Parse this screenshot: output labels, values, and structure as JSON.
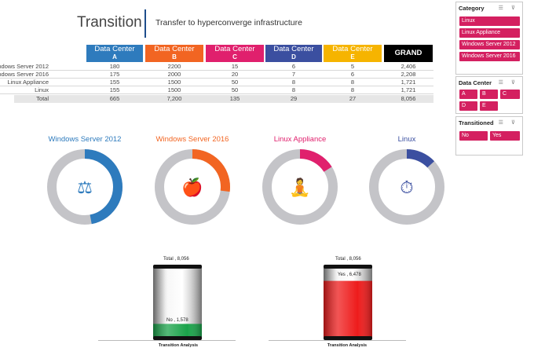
{
  "header": {
    "title": "Transition",
    "subtitle": "Transfer  to hyperconverge infrastructure"
  },
  "table": {
    "columns": [
      {
        "label": "Data Center",
        "sub": "A",
        "color": "#2e7bbd"
      },
      {
        "label": "Data Center",
        "sub": "B",
        "color": "#f26522"
      },
      {
        "label": "Data Center",
        "sub": "C",
        "color": "#e0206d"
      },
      {
        "label": "Data Center",
        "sub": "D",
        "color": "#3b4fa0"
      },
      {
        "label": "Data Center",
        "sub": "E",
        "color": "#f6b400"
      }
    ],
    "grand_total_label": "GRAND TOTAL",
    "rows": [
      {
        "label": "Windows Server 2012",
        "values": [
          "180",
          "2200",
          "15",
          "6",
          "5"
        ],
        "total": "2,406"
      },
      {
        "label": "Windows Server 2016",
        "values": [
          "175",
          "2000",
          "20",
          "7",
          "6"
        ],
        "total": "2,208"
      },
      {
        "label": "Linux Appliance",
        "values": [
          "155",
          "1500",
          "50",
          "8",
          "8"
        ],
        "total": "1,721"
      },
      {
        "label": "Linux",
        "values": [
          "155",
          "1500",
          "50",
          "8",
          "8"
        ],
        "total": "1,721"
      },
      {
        "label": "Total",
        "values": [
          "665",
          "7,200",
          "135",
          "29",
          "27"
        ],
        "total": "8,056"
      }
    ]
  },
  "slicers": {
    "category": {
      "title": "Category",
      "items": [
        "Linux",
        "Linux Appliance",
        "Windows Server 2012",
        "Windows Server 2016"
      ]
    },
    "data_center": {
      "title": "Data Center",
      "items": [
        "A",
        "B",
        "C",
        "D",
        "E"
      ]
    },
    "transitioned": {
      "title": "Transitioned",
      "items": [
        "No",
        "Yes"
      ]
    },
    "icons": "☰ ⊽"
  },
  "donuts": [
    {
      "label": "Windows Server 2012",
      "color": "#2e7bbd",
      "fraction": 0.47,
      "icon": "scale-icon",
      "glyph": "⚖"
    },
    {
      "label": "Windows Server 2016",
      "color": "#f26522",
      "fraction": 0.27,
      "icon": "apple-icon",
      "glyph": "🍎"
    },
    {
      "label": "Linux Appliance",
      "color": "#e0206d",
      "fraction": 0.16,
      "icon": "meditation-icon",
      "glyph": "🧘"
    },
    {
      "label": "Linux",
      "color": "#3b4fa0",
      "fraction": 0.13,
      "icon": "stopwatch-icon",
      "glyph": "⏱"
    }
  ],
  "transition_charts": [
    {
      "total_label": "Total ,  8,056",
      "value_label": "No ,  1,578",
      "value": 1578,
      "total": 8056,
      "fill_color": "#1aa34a",
      "axis_label": "Transition Analysis"
    },
    {
      "total_label": "Total ,  8,056",
      "value_label": "Yes ,  6,478",
      "value": 6478,
      "total": 8056,
      "fill_color": "#ee1c1c",
      "axis_label": "Transition Analysis"
    }
  ]
}
